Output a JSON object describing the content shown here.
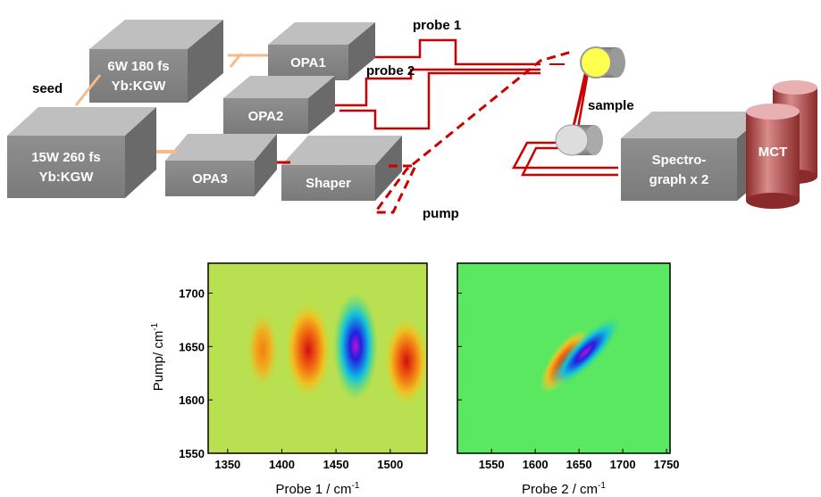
{
  "diagram": {
    "boxes": [
      {
        "lines": [
          "6W 180 fs",
          "Yb:KGW"
        ]
      },
      {
        "lines": [
          "OPA1"
        ]
      },
      {
        "lines": [
          "OPA2"
        ]
      },
      {
        "lines": [
          "15W 260 fs",
          "Yb:KGW"
        ]
      },
      {
        "lines": [
          "OPA3"
        ]
      },
      {
        "lines": [
          "Shaper"
        ]
      },
      {
        "lines": [
          "Spectro-",
          "graph x 2"
        ]
      }
    ],
    "detector": "MCT",
    "labels": [
      "seed",
      "probe 1",
      "probe 2",
      "sample",
      "pump"
    ]
  },
  "plots": [
    {
      "xlabel": "Probe 1 / cm",
      "xlabel_sup": "-1",
      "xlim": [
        1332,
        1534
      ],
      "xticks": [
        1350,
        1400,
        1450,
        1500
      ]
    },
    {
      "xlabel": "Probe 2 / cm",
      "xlabel_sup": "-1",
      "xlim": [
        1511,
        1754
      ],
      "xticks": [
        1550,
        1600,
        1650,
        1700,
        1750
      ]
    }
  ],
  "ylabel": "Pump/ cm",
  "ylabel_sup": "-1",
  "ylim": [
    1550,
    1728
  ],
  "yticks": [
    1550,
    1600,
    1650,
    1700
  ]
}
